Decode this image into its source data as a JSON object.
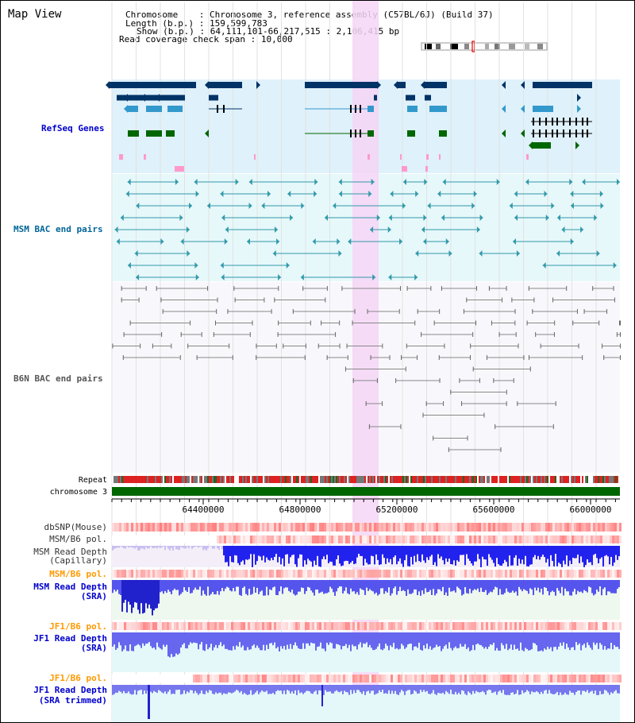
{
  "title": "Map View",
  "info": {
    "chromosome_key": "Chromosome",
    "chromosome_val": "Chromosome 3, reference assembly (C57BL/6J) (Build 37)",
    "length_key": "Length (b.p.)",
    "length_val": "159,599,783",
    "show_key": "Show (b.p.)",
    "show_val": "64,111,101-66,217,515 : 2,106,415 bp",
    "span_key": "Read coverage check span",
    "span_val": "10,000"
  },
  "tracks": {
    "refseq": "RefSeq Genes",
    "msm_bac": "MSM BAC end pairs",
    "b6n_bac": "B6N BAC end pairs",
    "repeat": "Repeat",
    "chromosome": "chromosome 3"
  },
  "ruler": {
    "labels": [
      "64400000",
      "64800000",
      "65200000",
      "65600000",
      "66000000"
    ]
  },
  "lower_tracks": {
    "dbsnp": "dbSNP(Mouse)",
    "msm_b6_pol_1": "MSM/B6 pol.",
    "msm_read_depth_cap_1": "MSM Read Depth",
    "msm_read_depth_cap_2": "(Capillary)",
    "msm_b6_pol_2": "MSM/B6 pol.",
    "msm_read_depth_sra_1": "MSM Read Depth",
    "msm_read_depth_sra_2": "(SRA)",
    "jf1_b6_pol_1": "JF1/B6 pol.",
    "jf1_read_depth_sra_1": "JF1 Read Depth",
    "jf1_read_depth_sra_2": "(SRA)",
    "jf1_b6_pol_2": "JF1/B6 pol.",
    "jf1_read_depth_trim_1": "JF1 Read Depth",
    "jf1_read_depth_trim_2": "(SRA trimmed)"
  },
  "colors": {
    "refseq_label": "#0000cc",
    "msm_label": "#006699",
    "b6n_label": "#555555",
    "orange_label": "#ff9900",
    "blue_label": "#0000cc",
    "highlight": "#f6d6f6",
    "gene_navy": "#003366",
    "gene_teal": "#3399cc",
    "gene_green": "#006600",
    "chromosome_bar": "#006600"
  }
}
